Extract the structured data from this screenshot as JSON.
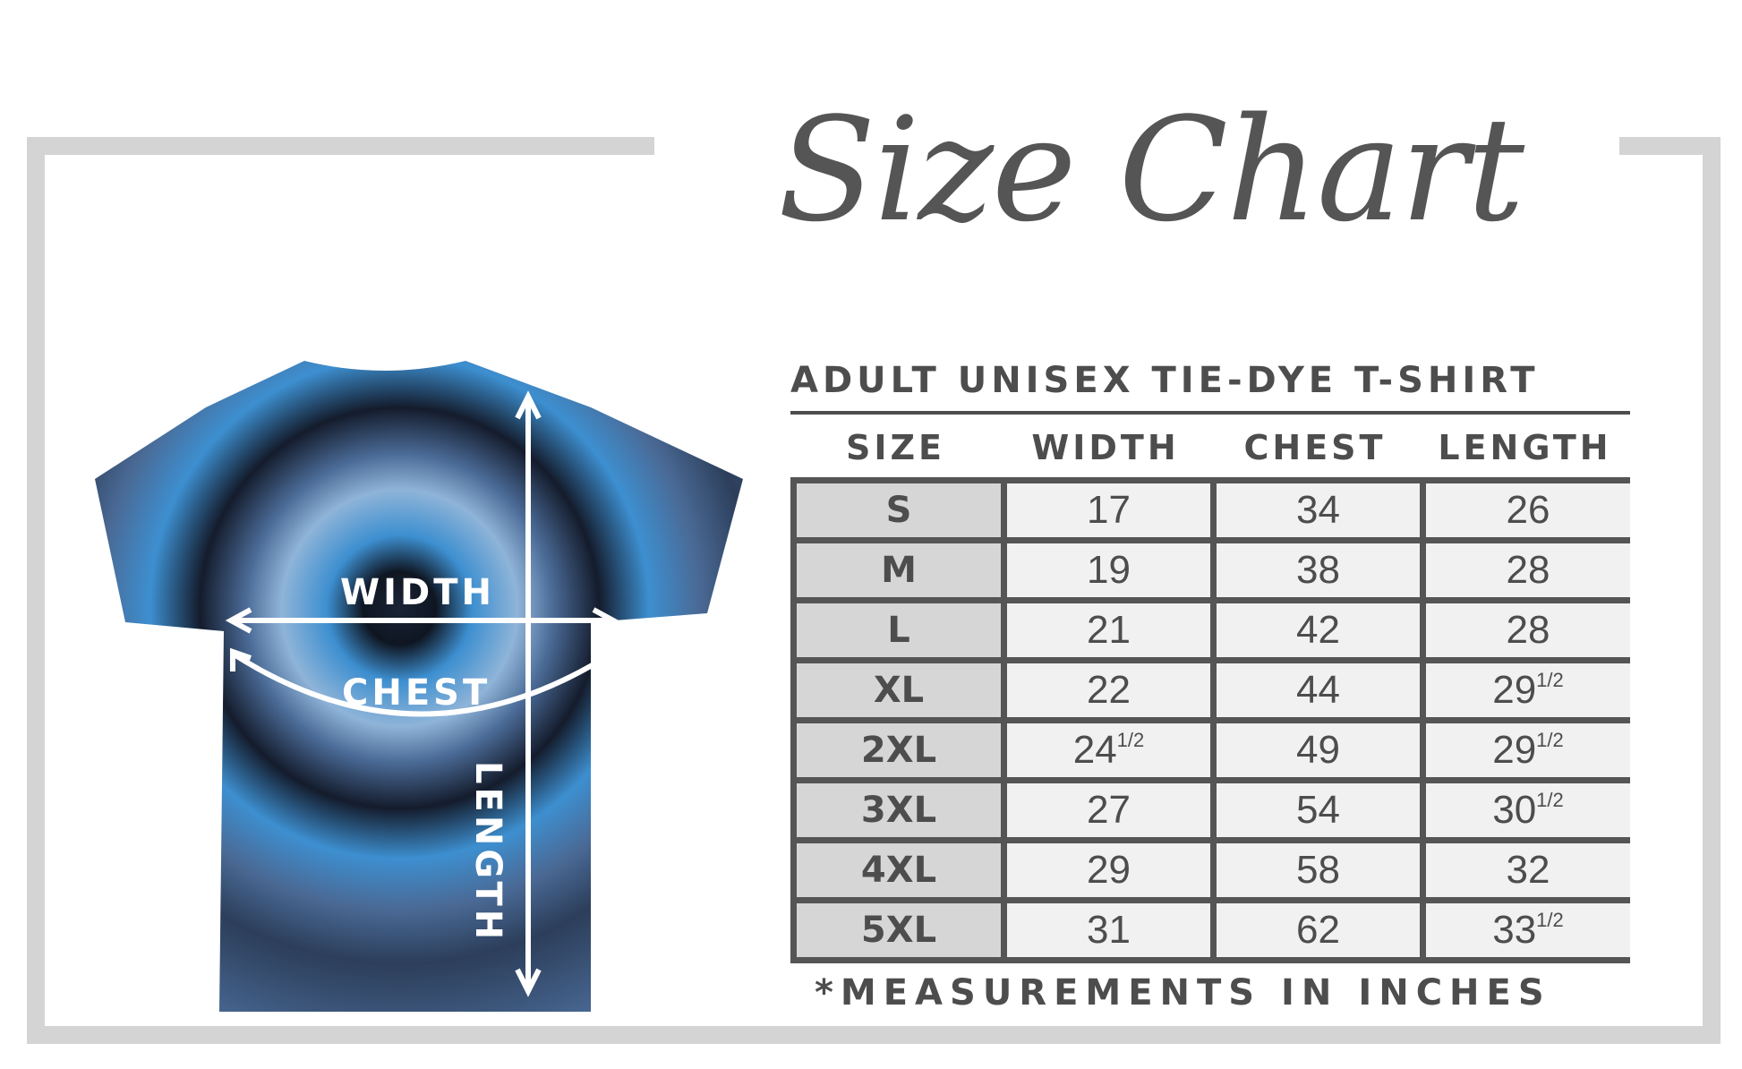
{
  "title": "Size Chart",
  "table": {
    "title": "ADULT UNISEX TIE-DYE T-SHIRT",
    "headers": [
      "SIZE",
      "WIDTH",
      "CHEST",
      "LENGTH"
    ],
    "rows": [
      {
        "size": "S",
        "width": "17",
        "width_frac": "",
        "chest": "34",
        "length": "26",
        "length_frac": ""
      },
      {
        "size": "M",
        "width": "19",
        "width_frac": "",
        "chest": "38",
        "length": "28",
        "length_frac": ""
      },
      {
        "size": "L",
        "width": "21",
        "width_frac": "",
        "chest": "42",
        "length": "28",
        "length_frac": ""
      },
      {
        "size": "XL",
        "width": "22",
        "width_frac": "",
        "chest": "44",
        "length": "29",
        "length_frac": "1/2"
      },
      {
        "size": "2XL",
        "width": "24",
        "width_frac": "1/2",
        "chest": "49",
        "length": "29",
        "length_frac": "1/2"
      },
      {
        "size": "3XL",
        "width": "27",
        "width_frac": "",
        "chest": "54",
        "length": "30",
        "length_frac": "1/2"
      },
      {
        "size": "4XL",
        "width": "29",
        "width_frac": "",
        "chest": "58",
        "length": "32",
        "length_frac": ""
      },
      {
        "size": "5XL",
        "width": "31",
        "width_frac": "",
        "chest": "62",
        "length": "33",
        "length_frac": "1/2"
      }
    ],
    "footnote": "*MEASUREMENTS IN INCHES"
  },
  "shirt": {
    "labels": {
      "width": "WIDTH",
      "chest": "CHEST",
      "length": "LENGTH"
    },
    "colors": {
      "dark": "#141c2c",
      "mid": "#4a6a96",
      "bright": "#3d8fd0",
      "light": "#8fb4d8"
    }
  },
  "colors": {
    "text": "#4d4d4d",
    "frame": "#d4d4d4",
    "size_cell": "#d6d6d6",
    "value_cell": "#f1f1f1"
  }
}
